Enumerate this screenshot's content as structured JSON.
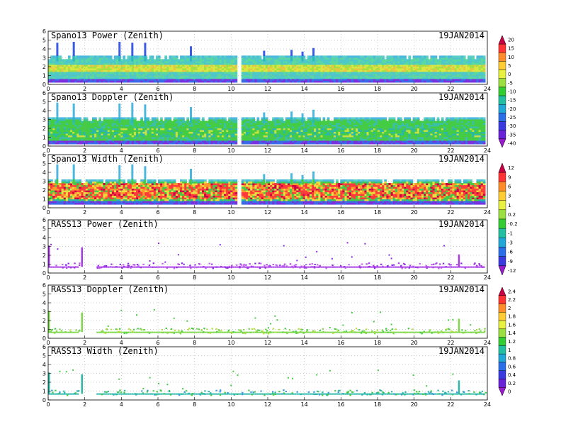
{
  "chart_data": [
    {
      "type": "heatmap",
      "title": "Spano13 Power (Zenith)",
      "date": "19JAN2014",
      "x_ticks": [
        0,
        2,
        4,
        6,
        8,
        10,
        12,
        14,
        16,
        18,
        20,
        22,
        24
      ],
      "y_ticks": [
        0,
        1,
        2,
        3,
        4,
        5,
        6
      ],
      "xlim": [
        0,
        24
      ],
      "ylim": [
        0,
        6
      ],
      "grid": true,
      "colorbar": "power",
      "profile": {
        "top": 3.2,
        "bottom": 0.25,
        "center_low": 1.3,
        "center_high": 2.2
      },
      "spikes": [
        {
          "x": 0.5,
          "y": 4.7
        },
        {
          "x": 1.4,
          "y": 4.8
        },
        {
          "x": 3.9,
          "y": 4.8
        },
        {
          "x": 4.6,
          "y": 4.7
        },
        {
          "x": 5.3,
          "y": 4.7
        },
        {
          "x": 7.8,
          "y": 4.3
        },
        {
          "x": 11.8,
          "y": 3.8
        },
        {
          "x": 13.3,
          "y": 3.9
        },
        {
          "x": 13.9,
          "y": 3.7
        },
        {
          "x": 14.5,
          "y": 4.1
        }
      ],
      "gaps": [
        10.35
      ]
    },
    {
      "type": "heatmap",
      "title": "Spano13 Doppler (Zenith)",
      "date": "19JAN2014",
      "x_ticks": [
        0,
        2,
        4,
        6,
        8,
        10,
        12,
        14,
        16,
        18,
        20,
        22,
        24
      ],
      "y_ticks": [
        0,
        1,
        2,
        3,
        4,
        5,
        6
      ],
      "xlim": [
        0,
        24
      ],
      "ylim": [
        0,
        6
      ],
      "grid": true,
      "colorbar": "power",
      "profile": {
        "top": 3.2,
        "bottom": 0.25,
        "center_low": 1.0,
        "center_high": 2.0
      },
      "spikes": [
        {
          "x": 0.5,
          "y": 4.9
        },
        {
          "x": 1.4,
          "y": 4.8
        },
        {
          "x": 3.9,
          "y": 4.8
        },
        {
          "x": 4.6,
          "y": 4.9
        },
        {
          "x": 5.3,
          "y": 4.7
        },
        {
          "x": 7.8,
          "y": 4.4
        },
        {
          "x": 11.8,
          "y": 3.8
        },
        {
          "x": 13.3,
          "y": 3.9
        },
        {
          "x": 13.9,
          "y": 3.7
        },
        {
          "x": 14.5,
          "y": 4.1
        }
      ],
      "gaps": [
        10.35
      ]
    },
    {
      "type": "heatmap",
      "title": "Spano13 Width (Zenith)",
      "date": "19JAN2014",
      "x_ticks": [
        0,
        2,
        4,
        6,
        8,
        10,
        12,
        14,
        16,
        18,
        20,
        22,
        24
      ],
      "y_ticks": [
        0,
        1,
        2,
        3,
        4,
        5,
        6
      ],
      "xlim": [
        0,
        24
      ],
      "ylim": [
        0,
        6
      ],
      "grid": true,
      "colorbar": "width",
      "profile": {
        "top": 3.2,
        "bottom": 0.4,
        "center_low": 0.9,
        "center_high": 2.7
      },
      "spikes": [
        {
          "x": 0.5,
          "y": 4.9
        },
        {
          "x": 1.4,
          "y": 4.9
        },
        {
          "x": 3.9,
          "y": 4.8
        },
        {
          "x": 4.6,
          "y": 4.9
        },
        {
          "x": 5.3,
          "y": 4.7
        },
        {
          "x": 7.8,
          "y": 4.4
        },
        {
          "x": 11.8,
          "y": 3.8
        },
        {
          "x": 13.3,
          "y": 3.9
        },
        {
          "x": 13.9,
          "y": 3.7
        },
        {
          "x": 14.5,
          "y": 4.1
        }
      ],
      "gaps": [
        10.35
      ]
    },
    {
      "type": "scatter",
      "title": "RASS13 Power (Zenith)",
      "date": "19JAN2014",
      "x_ticks": [
        0,
        2,
        4,
        6,
        8,
        10,
        12,
        14,
        16,
        18,
        20,
        22,
        24
      ],
      "y_ticks": [
        0,
        1,
        2,
        3,
        4,
        5,
        6
      ],
      "xlim": [
        0,
        24
      ],
      "ylim": [
        0,
        6
      ],
      "grid": true,
      "colorbar": "width",
      "band": {
        "y_low": 0.6,
        "y_high": 1.2,
        "x_start": 0,
        "x_end": 23.8,
        "gap": [
          1.6,
          2.6
        ]
      },
      "spikes": [
        {
          "x": 0.0,
          "y": 3.1
        },
        {
          "x": 1.8,
          "y": 2.9
        },
        {
          "x": 22.4,
          "y": 2.1
        }
      ]
    },
    {
      "type": "scatter",
      "title": "RASS13 Doppler (Zenith)",
      "date": "19JAN2014",
      "x_ticks": [
        0,
        2,
        4,
        6,
        8,
        10,
        12,
        14,
        16,
        18,
        20,
        22,
        24
      ],
      "y_ticks": [
        0,
        1,
        2,
        3,
        4,
        5,
        6
      ],
      "xlim": [
        0,
        24
      ],
      "ylim": [
        0,
        6
      ],
      "grid": true,
      "colorbar": "doppler",
      "band": {
        "y_low": 0.6,
        "y_high": 1.2,
        "x_start": 0,
        "x_end": 23.8,
        "gap": [
          1.6,
          2.6
        ]
      },
      "spikes": [
        {
          "x": 0.0,
          "y": 3.1
        },
        {
          "x": 1.8,
          "y": 2.9
        },
        {
          "x": 22.4,
          "y": 2.2
        }
      ]
    },
    {
      "type": "scatter",
      "title": "RASS13 Width (Zenith)",
      "date": "19JAN2014",
      "x_ticks": [
        0,
        2,
        4,
        6,
        8,
        10,
        12,
        14,
        16,
        18,
        20,
        22,
        24
      ],
      "y_ticks": [
        0,
        1,
        2,
        3,
        4,
        5,
        6
      ],
      "xlim": [
        0,
        24
      ],
      "ylim": [
        0,
        6
      ],
      "grid": true,
      "colorbar": "doppler",
      "band": {
        "y_low": 0.6,
        "y_high": 1.2,
        "x_start": 0,
        "x_end": 23.8,
        "gap": [
          1.6,
          2.6
        ]
      },
      "spikes": [
        {
          "x": 0.0,
          "y": 3.1
        },
        {
          "x": 1.8,
          "y": 2.9
        },
        {
          "x": 22.4,
          "y": 2.2
        }
      ]
    }
  ],
  "colorbars": {
    "power": {
      "labels": [
        "20",
        "15",
        "10",
        "5",
        "0",
        "-5",
        "-10",
        "-15",
        "-20",
        "-25",
        "-30",
        "-35",
        "-40"
      ],
      "colors": [
        "#cc0044",
        "#ff3333",
        "#ff8c2a",
        "#ffcc33",
        "#e8f040",
        "#9be040",
        "#33cc33",
        "#22c0a0",
        "#22a8d8",
        "#2a6ee8",
        "#3a3ae0",
        "#6a22d8",
        "#9a1ad0"
      ]
    },
    "width": {
      "labels": [
        "12",
        "9",
        "6",
        "3",
        "1",
        "0.2",
        "-0.2",
        "-1",
        "-3",
        "-6",
        "-9",
        "-12"
      ],
      "colors": [
        "#cc0044",
        "#ff3333",
        "#ff8c2a",
        "#ffcc33",
        "#e8f040",
        "#9be040",
        "#33cc33",
        "#22c0a0",
        "#22a8d8",
        "#2a6ee8",
        "#3a3ae0",
        "#9a1ad0"
      ]
    },
    "doppler": {
      "labels": [
        "2.4",
        "2.2",
        "2",
        "1.8",
        "1.6",
        "1.4",
        "1.2",
        "1",
        "0.8",
        "0.6",
        "0.4",
        "0.2",
        "0"
      ],
      "colors": [
        "#cc0044",
        "#ff3333",
        "#ff8c2a",
        "#ffcc33",
        "#e8f040",
        "#9be040",
        "#33cc33",
        "#22c0a0",
        "#22a8d8",
        "#2a6ee8",
        "#3a3ae0",
        "#6a22d8",
        "#9a1ad0"
      ]
    }
  }
}
